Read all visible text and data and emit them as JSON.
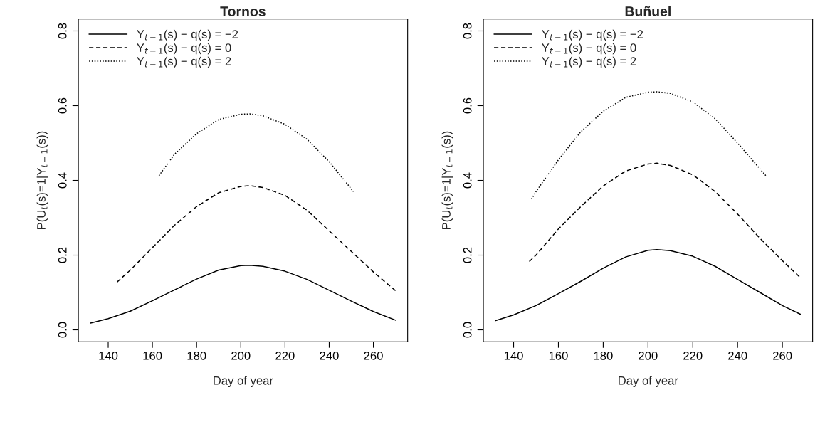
{
  "chart_data": [
    {
      "type": "line",
      "title": "Tornos",
      "xlabel": "Day of year",
      "ylabel": "P(U$_{t}$(s)=1|Y$_{t−1}$(s))",
      "xlim": [
        126.5,
        275.5
      ],
      "ylim": [
        -0.032,
        0.832
      ],
      "xticks": [
        140,
        160,
        180,
        200,
        220,
        240,
        260
      ],
      "yticks": [
        {
          "value": 0,
          "label": "0.0"
        },
        0.2,
        0.4,
        0.6,
        0.8
      ],
      "legend": "top left",
      "grid": false,
      "series": [
        {
          "name": "Y$_{t−1}$(s) − q(s) = −2",
          "color": "#000000",
          "line_style": "solid",
          "x": [
            132,
            140,
            150,
            160,
            170,
            180,
            190,
            200,
            204,
            210,
            220,
            230,
            240,
            250,
            260,
            270
          ],
          "values": [
            0.018,
            0.03,
            0.05,
            0.078,
            0.107,
            0.136,
            0.16,
            0.172,
            0.173,
            0.17,
            0.157,
            0.135,
            0.106,
            0.077,
            0.049,
            0.026
          ]
        },
        {
          "name": "Y$_{t−1}$(s) − q(s) = 0",
          "color": "#000000",
          "line_style": "dashed",
          "x": [
            144,
            150,
            160,
            170,
            180,
            190,
            200,
            204,
            210,
            220,
            230,
            240,
            250,
            260,
            270
          ],
          "values": [
            0.128,
            0.16,
            0.22,
            0.28,
            0.33,
            0.367,
            0.384,
            0.386,
            0.381,
            0.36,
            0.32,
            0.265,
            0.21,
            0.155,
            0.105
          ]
        },
        {
          "name": "Y$_{t−1}$(s) − q(s) = 2",
          "color": "#000000",
          "line_style": "dotted",
          "x": [
            163,
            170,
            180,
            190,
            200,
            204,
            210,
            220,
            230,
            240,
            251
          ],
          "values": [
            0.413,
            0.47,
            0.525,
            0.563,
            0.577,
            0.578,
            0.573,
            0.55,
            0.51,
            0.45,
            0.37
          ]
        }
      ]
    },
    {
      "type": "line",
      "title": "Buñuel",
      "xlabel": "Day of year",
      "ylabel": "P(U$_{t}$(s)=1|Y$_{t−1}$(s))",
      "xlim": [
        126.5,
        273.5
      ],
      "ylim": [
        -0.032,
        0.832
      ],
      "xticks": [
        140,
        160,
        180,
        200,
        220,
        240,
        260
      ],
      "yticks": [
        {
          "value": 0,
          "label": "0.0"
        },
        0.2,
        0.4,
        0.6,
        0.8
      ],
      "legend": "top left",
      "grid": false,
      "series": [
        {
          "name": "Y$_{t−1}$(s) − q(s) = −2",
          "color": "#000000",
          "line_style": "solid",
          "x": [
            132,
            140,
            150,
            160,
            170,
            180,
            190,
            200,
            204,
            210,
            220,
            230,
            240,
            250,
            260,
            268
          ],
          "values": [
            0.025,
            0.04,
            0.065,
            0.097,
            0.13,
            0.165,
            0.195,
            0.213,
            0.215,
            0.212,
            0.197,
            0.17,
            0.135,
            0.1,
            0.065,
            0.042
          ]
        },
        {
          "name": "Y$_{t−1}$(s) − q(s) = 0",
          "color": "#000000",
          "line_style": "dashed",
          "x": [
            147,
            150,
            160,
            170,
            180,
            190,
            200,
            204,
            210,
            220,
            230,
            240,
            250,
            260,
            268
          ],
          "values": [
            0.183,
            0.2,
            0.27,
            0.33,
            0.385,
            0.425,
            0.444,
            0.446,
            0.44,
            0.415,
            0.37,
            0.31,
            0.245,
            0.185,
            0.14
          ]
        },
        {
          "name": "Y$_{t−1}$(s) − q(s) = 2",
          "color": "#000000",
          "line_style": "dotted",
          "x": [
            148,
            150,
            160,
            170,
            180,
            190,
            200,
            204,
            210,
            220,
            230,
            240,
            253
          ],
          "values": [
            0.35,
            0.37,
            0.455,
            0.53,
            0.585,
            0.622,
            0.636,
            0.637,
            0.633,
            0.61,
            0.565,
            0.5,
            0.41
          ]
        }
      ]
    }
  ]
}
